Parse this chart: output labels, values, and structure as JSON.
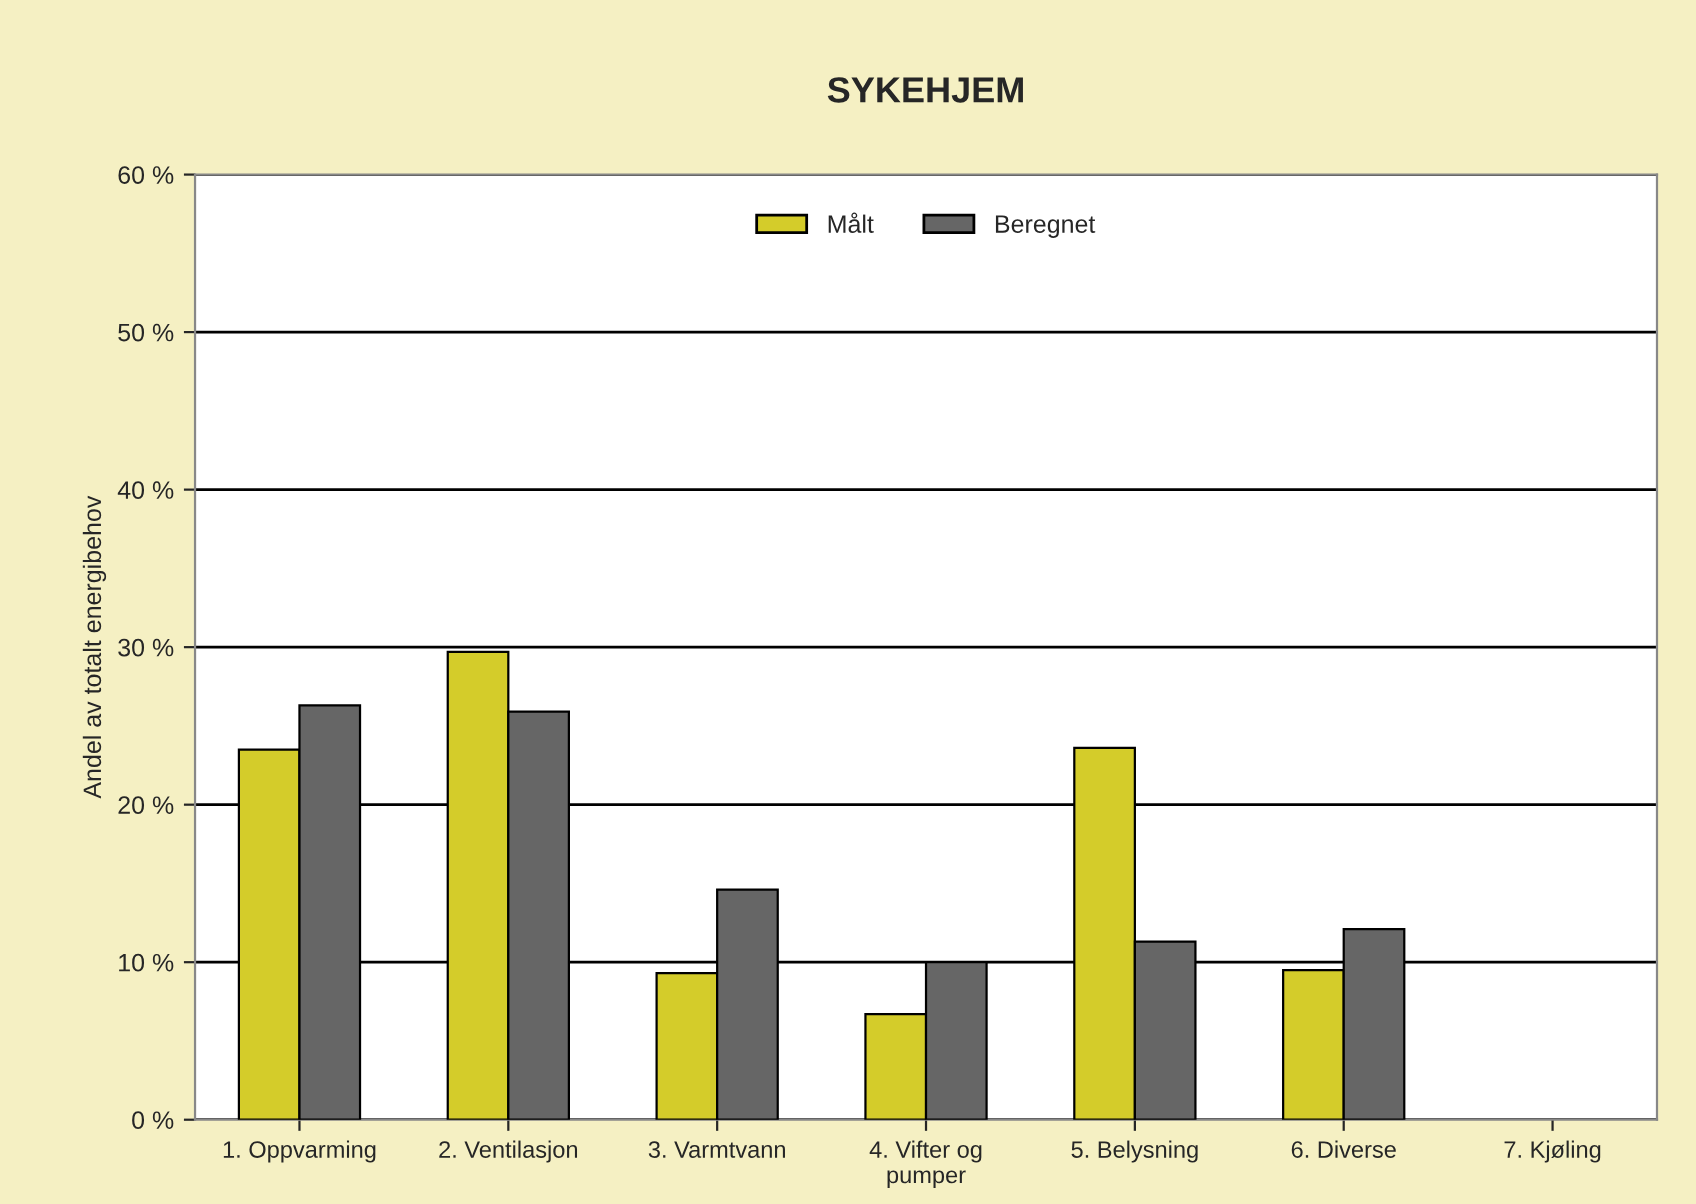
{
  "chart_data": {
    "type": "bar",
    "title": "SYKEHJEM",
    "ylabel": "Andel av totalt energibehov",
    "categories": [
      "1. Oppvarming",
      "2. Ventilasjon",
      "3. Varmtvann",
      "4. Vifter og\npumper",
      "5. Belysning",
      "6. Diverse",
      "7. Kjøling"
    ],
    "series": [
      {
        "name": "Målt",
        "color": "#d4cc2a",
        "values": [
          23.5,
          29.7,
          9.3,
          6.7,
          23.6,
          9.5,
          null
        ]
      },
      {
        "name": "Beregnet",
        "color": "#666666",
        "values": [
          26.3,
          25.9,
          14.6,
          10.0,
          11.3,
          12.1,
          null
        ]
      }
    ],
    "ylim": [
      0,
      60
    ],
    "yticks": [
      {
        "value": 0,
        "label": "0 %"
      },
      {
        "value": 10,
        "label": "10 %"
      },
      {
        "value": 20,
        "label": "20 %"
      },
      {
        "value": 30,
        "label": "30 %"
      },
      {
        "value": 40,
        "label": "40 %"
      },
      {
        "value": 50,
        "label": "50 %"
      },
      {
        "value": 60,
        "label": "60 %"
      }
    ],
    "grid": "y",
    "legend": "top"
  }
}
